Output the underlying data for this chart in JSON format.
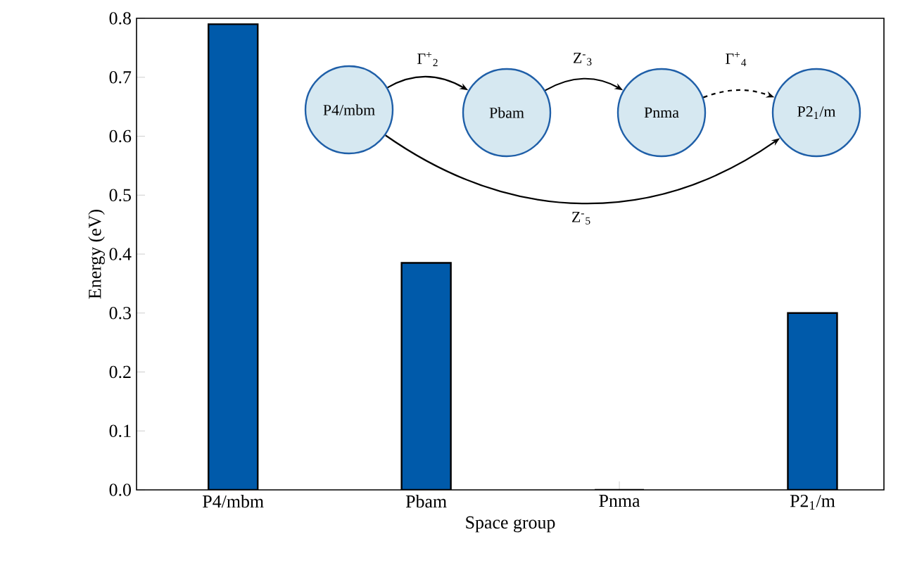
{
  "chart_data": {
    "type": "bar",
    "xlabel": "Space group",
    "ylabel": "Energy (eV)",
    "categories": [
      "P4/mbm",
      "Pbam",
      "Pnma",
      "P2$_{1}$/m"
    ],
    "values": [
      0.79,
      0.385,
      0,
      0.3
    ],
    "color": "#005aaa",
    "ylim": [
      0,
      0.8
    ],
    "yticks": [
      {
        "value": 0,
        "label": "0.0"
      },
      0.1,
      0.2,
      0.3,
      0.4,
      0.5,
      0.6,
      0.7,
      0.8
    ],
    "annotations": [
      "P4/mbm",
      "Pbam",
      "Pnma",
      "P2$_{1}$/m",
      "Γ$^{+}$$_{2}$",
      "Z$^{-}$$_{3}$",
      "Γ$^{+}$$_{4}$",
      "Z$^{-}$$_{5}$"
    ]
  }
}
